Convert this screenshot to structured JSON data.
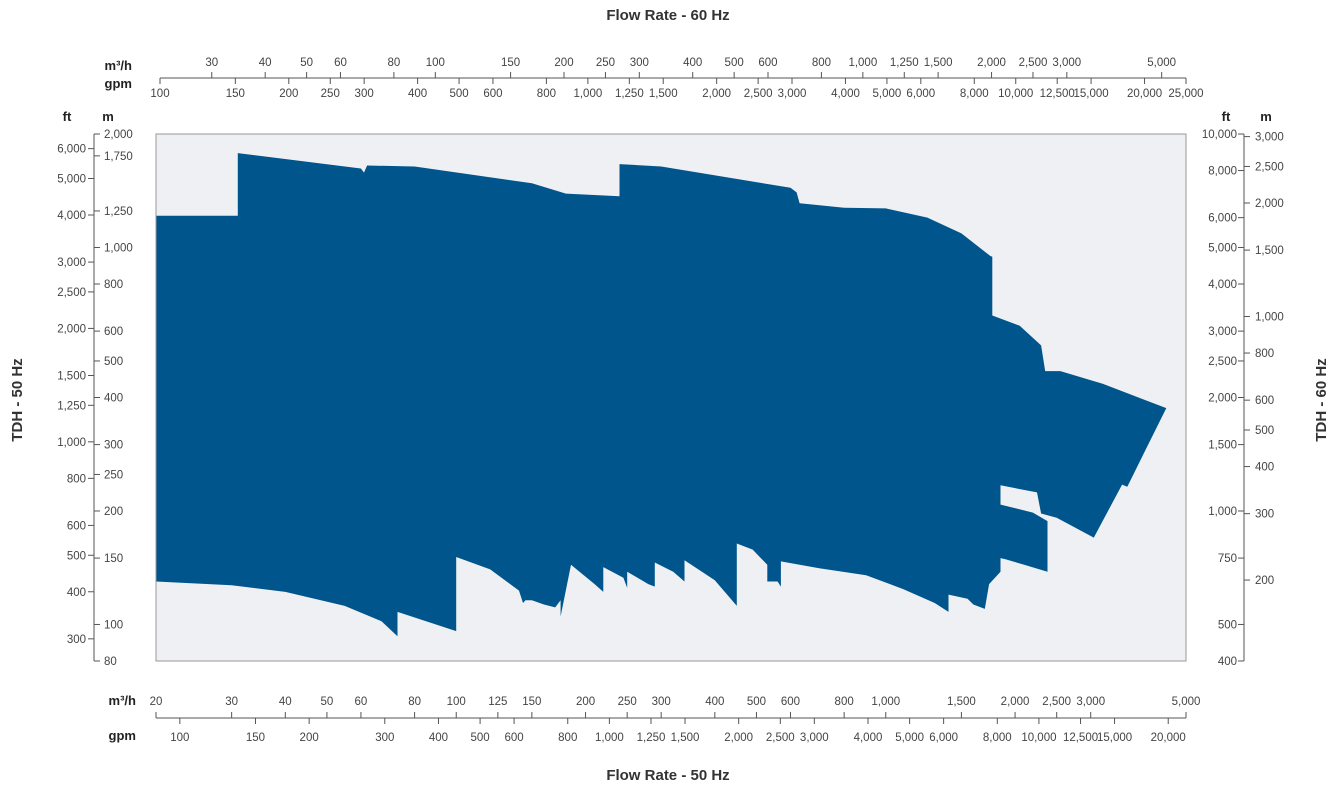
{
  "chart_data": {
    "type": "area",
    "title_top": "Flow Rate - 60 Hz",
    "title_bottom": "Flow Rate - 50 Hz",
    "left_axis_title": "TDH - 50 Hz",
    "right_axis_title": "TDH - 60 Hz",
    "units": {
      "m3h": "m³/h",
      "gpm": "gpm",
      "ft": "ft",
      "m": "m"
    },
    "scale": "log",
    "grid": false,
    "colors": {
      "envelope": "#00558C",
      "plot_background": "#EEF0F3",
      "plot_border": "#999999",
      "text": "#333333"
    },
    "top_m3h": {
      "range": [
        22.7,
        5700
      ],
      "ticks": [
        "30",
        "40",
        "50",
        "60",
        "80",
        "100",
        "150",
        "200",
        "250",
        "300",
        "400",
        "500",
        "600",
        "800",
        "1,000",
        "1,250",
        "1,500",
        "2,000",
        "2,500",
        "3,000",
        "5,000"
      ]
    },
    "top_gpm": {
      "range": [
        100,
        25000
      ],
      "ticks": [
        "100",
        "150",
        "200",
        "250",
        "300",
        "400",
        "500",
        "600",
        "800",
        "1,000",
        "1,250",
        "1,500",
        "2,000",
        "2,500",
        "3,000",
        "4,000",
        "5,000",
        "6,000",
        "8,000",
        "10,000",
        "12,500",
        "15,000",
        "20,000",
        "25,000"
      ]
    },
    "bottom_m3h": {
      "range": [
        20,
        5000
      ],
      "ticks": [
        "20",
        "30",
        "40",
        "50",
        "60",
        "80",
        "100",
        "125",
        "150",
        "200",
        "250",
        "300",
        "400",
        "500",
        "600",
        "800",
        "1,000",
        "1.250",
        "1,500",
        "2,000",
        "2,500",
        "3,000",
        "5,000"
      ]
    },
    "bottom_gpm": {
      "range": [
        88,
        22000
      ],
      "ticks": [
        "100",
        "150",
        "200",
        "300",
        "400",
        "500",
        "600",
        "800",
        "1,000",
        "1,250",
        "1,500",
        "2,000",
        "2,500",
        "3,000",
        "4,000",
        "5,000",
        "6,000",
        "8,000",
        "10,000",
        "12,500",
        "15,000",
        "20,000"
      ]
    },
    "left_ft": {
      "range": [
        262,
        6562
      ],
      "ticks": [
        "300",
        "400",
        "500",
        "600",
        "800",
        "1,000",
        "1,250",
        "1,500",
        "2,000",
        "2,500",
        "3,000",
        "4,000",
        "5,000",
        "6,000"
      ]
    },
    "left_m": {
      "range": [
        80,
        2000
      ],
      "ticks": [
        "80",
        "100",
        "150",
        "200",
        "250",
        "300",
        "400",
        "500",
        "600",
        "800",
        "1,000",
        "1,250",
        "1,750",
        "2,000"
      ]
    },
    "right_ft": {
      "range": [
        400,
        10000
      ],
      "ticks": [
        "400",
        "500",
        "750",
        "1,000",
        "1,500",
        "2,000",
        "2,500",
        "3,000",
        "4,000",
        "5,000",
        "6,000",
        "8,000",
        "10,000"
      ]
    },
    "right_m": {
      "range": [
        122,
        3048
      ],
      "ticks": [
        "200",
        "300",
        "400",
        "500",
        "600",
        "800",
        "1,000",
        "1,500",
        "2,000",
        "2,500",
        "3,000"
      ]
    },
    "envelope_50hz": {
      "description_units": [
        "m³/h",
        "m"
      ],
      "upper": [
        [
          20,
          1214
        ],
        [
          31,
          1214
        ],
        [
          31,
          1780
        ],
        [
          60,
          1620
        ],
        [
          61,
          1580
        ],
        [
          62,
          1650
        ],
        [
          80,
          1640
        ],
        [
          150,
          1480
        ],
        [
          180,
          1390
        ],
        [
          240,
          1368
        ],
        [
          240,
          1664
        ],
        [
          300,
          1640
        ],
        [
          600,
          1440
        ],
        [
          620,
          1400
        ],
        [
          630,
          1310
        ],
        [
          720,
          1290
        ],
        [
          800,
          1275
        ],
        [
          1000,
          1270
        ],
        [
          1250,
          1200
        ],
        [
          1500,
          1090
        ],
        [
          1750,
          950
        ],
        [
          1770,
          945
        ],
        [
          1770,
          660
        ],
        [
          2050,
          620
        ],
        [
          2300,
          550
        ],
        [
          2350,
          470
        ],
        [
          2550,
          470
        ],
        [
          3200,
          435
        ],
        [
          4500,
          375
        ],
        [
          3650,
          232
        ],
        [
          3550,
          235
        ],
        [
          3050,
          170
        ],
        [
          2500,
          192
        ],
        [
          2300,
          197
        ],
        [
          2250,
          224
        ],
        [
          1850,
          234
        ],
        [
          1850,
          208
        ],
        [
          2200,
          198
        ],
        [
          2380,
          188
        ],
        [
          2380,
          138
        ],
        [
          2100,
          144
        ],
        [
          1900,
          149
        ],
        [
          1850,
          150
        ],
        [
          1850,
          138
        ],
        [
          1740,
          128
        ]
      ],
      "lower": [
        [
          20,
          130
        ],
        [
          30,
          127
        ],
        [
          40,
          122
        ],
        [
          55,
          112
        ],
        [
          67,
          102
        ],
        [
          73,
          93
        ],
        [
          73,
          108
        ],
        [
          100,
          96
        ],
        [
          100,
          151
        ],
        [
          120,
          140
        ],
        [
          140,
          123
        ],
        [
          143,
          114
        ],
        [
          145,
          116
        ],
        [
          150,
          116
        ],
        [
          160,
          113
        ],
        [
          170,
          111
        ],
        [
          175,
          116
        ],
        [
          175,
          105
        ],
        [
          185,
          144
        ],
        [
          210,
          128
        ],
        [
          220,
          122
        ],
        [
          220,
          142
        ],
        [
          245,
          133
        ],
        [
          250,
          125
        ],
        [
          250,
          138
        ],
        [
          280,
          128
        ],
        [
          290,
          126
        ],
        [
          290,
          146
        ],
        [
          320,
          138
        ],
        [
          340,
          130
        ],
        [
          340,
          148
        ],
        [
          400,
          131
        ],
        [
          450,
          112
        ],
        [
          450,
          164
        ],
        [
          490,
          158
        ],
        [
          530,
          144
        ],
        [
          530,
          130
        ],
        [
          560,
          130
        ],
        [
          570,
          126
        ],
        [
          570,
          147
        ],
        [
          700,
          141
        ],
        [
          900,
          135
        ],
        [
          1100,
          124
        ],
        [
          1300,
          114
        ],
        [
          1400,
          108
        ],
        [
          1400,
          120
        ],
        [
          1550,
          117
        ],
        [
          1600,
          113
        ],
        [
          1700,
          110
        ]
      ]
    }
  }
}
